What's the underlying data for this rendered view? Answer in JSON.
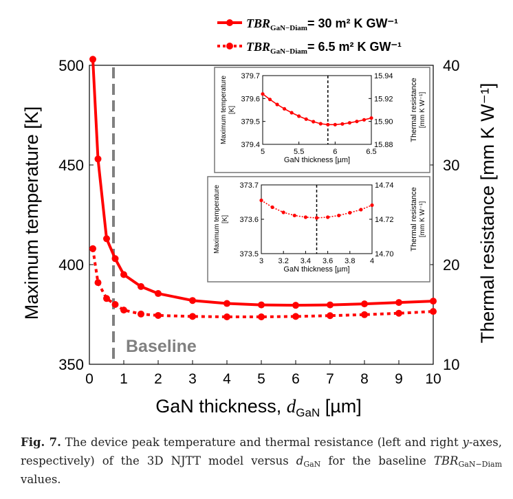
{
  "colors": {
    "series": "#ff0000",
    "baseline": "#808080",
    "axis": "#000000",
    "inset_frame": "#777777"
  },
  "legend": {
    "items": [
      {
        "name_main": "TBR",
        "name_sub": "GaN−Diam",
        "label": "= 30 m² K GW⁻¹",
        "style": "solid"
      },
      {
        "name_main": "TBR",
        "name_sub": "GaN−Diam",
        "label": "= 6.5 m² K GW⁻¹",
        "style": "dotted"
      }
    ]
  },
  "baseline_label": "Baseline",
  "chart_data": [
    {
      "type": "line",
      "id": "main",
      "xlabel_main": "GaN thickness, ",
      "xlabel_var": "d",
      "xlabel_sub": "GaN",
      "xlabel_unit": " [µm]",
      "ylabel_left": "Maximum temperature [K]",
      "ylabel_right": "Thermal resistance [mm K W⁻¹]",
      "xlim": [
        0,
        10
      ],
      "ylim_left": [
        350,
        500
      ],
      "ylim_right": [
        10,
        40
      ],
      "xticks": [
        "0",
        "1",
        "2",
        "3",
        "4",
        "5",
        "6",
        "7",
        "8",
        "9",
        "10"
      ],
      "yticks_left": [
        "350",
        "400",
        "450",
        "500"
      ],
      "yticks_right": [
        "10",
        "20",
        "30",
        "40"
      ],
      "baseline_x": 0.7,
      "series": [
        {
          "name": "TBR GaN-Diam = 30 m² K GW⁻¹",
          "style": "solid",
          "x": [
            0.1,
            0.25,
            0.5,
            0.75,
            1.0,
            1.5,
            2,
            3,
            4,
            5,
            6,
            7,
            8,
            9,
            10
          ],
          "y": [
            503,
            453,
            413,
            403,
            395,
            389,
            385.5,
            382,
            380.5,
            379.8,
            379.6,
            379.8,
            380.3,
            381,
            381.7
          ]
        },
        {
          "name": "TBR GaN-Diam = 6.5 m² K GW⁻¹",
          "style": "dotted",
          "x": [
            0.1,
            0.25,
            0.5,
            0.75,
            1.0,
            1.5,
            2,
            3,
            4,
            5,
            6,
            7,
            8,
            9,
            10
          ],
          "y": [
            408,
            391,
            383,
            380,
            377.2,
            375.2,
            374.5,
            374.0,
            373.8,
            373.8,
            374.0,
            374.4,
            374.9,
            375.6,
            376.5
          ]
        }
      ]
    },
    {
      "type": "line",
      "id": "inset-top",
      "xlabel": "GaN thickness [µm]",
      "ylabel_left_1": "Maximum temperature",
      "ylabel_left_2": "[K]",
      "ylabel_right_1": "Thermal resistance",
      "ylabel_right_2": "[mm K W⁻¹]",
      "xlim": [
        5,
        6.5
      ],
      "ylim_left": [
        379.4,
        379.7
      ],
      "ylim_right": [
        15.88,
        15.94
      ],
      "xticks": [
        "5",
        "5.5",
        "6",
        "6.5"
      ],
      "yticks_left": [
        "379.4",
        "379.5",
        "379.6",
        "379.7"
      ],
      "yticks_right": [
        "15.88",
        "15.90",
        "15.92",
        "15.94"
      ],
      "min_marker_x": 5.9,
      "series": [
        {
          "name": "TBR GaN-Diam = 30 m² K GW⁻¹",
          "style": "solid",
          "x": [
            5.0,
            5.1,
            5.2,
            5.3,
            5.4,
            5.5,
            5.6,
            5.7,
            5.8,
            5.9,
            6.0,
            6.1,
            6.2,
            6.3,
            6.4,
            6.5
          ],
          "y": [
            379.62,
            379.596,
            379.574,
            379.555,
            379.538,
            379.523,
            379.51,
            379.499,
            379.49,
            379.486,
            379.486,
            379.489,
            379.494,
            379.5,
            379.507,
            379.515
          ]
        }
      ]
    },
    {
      "type": "line",
      "id": "inset-bottom",
      "xlabel": "GaN thickness [µm]",
      "ylabel_left_1": "Maximum temperature",
      "ylabel_left_2": "[K]",
      "ylabel_right_1": "Thermal resistance",
      "ylabel_right_2": "[mm K W⁻¹]",
      "xlim": [
        3,
        4
      ],
      "ylim_left": [
        373.5,
        373.7
      ],
      "ylim_right": [
        14.7,
        14.74
      ],
      "xticks": [
        "3",
        "3.2",
        "3.4",
        "3.6",
        "3.8",
        "4"
      ],
      "yticks_left": [
        "373.5",
        "373.6",
        "373.7"
      ],
      "yticks_right": [
        "14.70",
        "14.72",
        "14.74"
      ],
      "min_marker_x": 3.5,
      "series": [
        {
          "name": "TBR GaN-Diam = 6.5 m² K GW⁻¹",
          "style": "dotted",
          "x": [
            3.0,
            3.1,
            3.2,
            3.3,
            3.4,
            3.5,
            3.6,
            3.7,
            3.8,
            3.9,
            4.0
          ],
          "y": [
            373.655,
            373.635,
            373.62,
            373.611,
            373.606,
            373.604,
            373.606,
            373.611,
            373.619,
            373.628,
            373.641
          ]
        }
      ]
    }
  ],
  "caption": {
    "label": "Fig. 7.",
    "text_1": " The device peak temperature and thermal resistance (left and right ",
    "y_var": "y",
    "text_2": "-axes, respectively) of the 3D NJTT model versus ",
    "d_var": "d",
    "d_sub": "GaN",
    "text_3": " for the baseline ",
    "tbr_main": "TBR",
    "tbr_sub": "GaN−Diam",
    "text_4": " values."
  }
}
